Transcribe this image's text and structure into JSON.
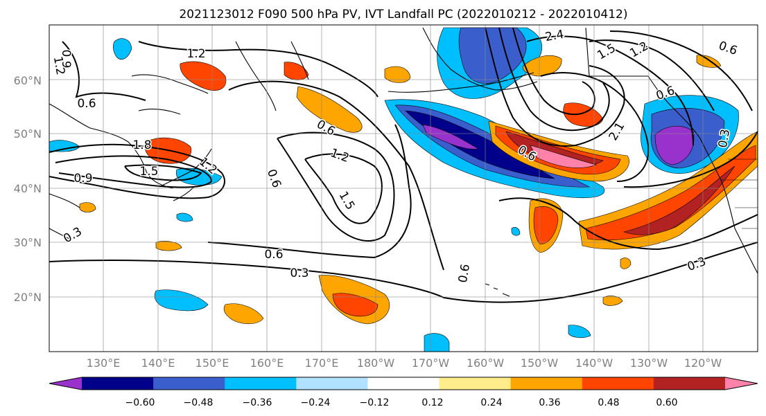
{
  "title": "2021123012 F090 500 hPa PV, IVT Landfall PC (2022010212 - 2022010412)",
  "lat_labels": [
    "60°N",
    "50°N",
    "40°N",
    "30°N",
    "20°N"
  ],
  "lon_labels": [
    "130°E",
    "140°E",
    "150°E",
    "160°E",
    "170°E",
    "180°W",
    "170°W",
    "160°W",
    "150°W",
    "140°W",
    "130°W",
    "120°W"
  ],
  "colorbar": {
    "colors": [
      "#9932cc",
      "#00008b",
      "#3a5fcd",
      "#00bfff",
      "#b0e2ff",
      "#ffffff",
      "#ffec8b",
      "#ffa500",
      "#ff4500",
      "#b22222",
      "#ff82ab"
    ],
    "tick_labels": [
      "−0.60",
      "−0.48",
      "−0.36",
      "−0.24",
      "−0.12",
      "0.12",
      "0.24",
      "0.36",
      "0.48",
      "0.60"
    ]
  },
  "contour_labels": [
    "1.2",
    "0.9",
    "1.2",
    "0.6",
    "0.6",
    "1.8",
    "1.5",
    "0.9",
    "1.2",
    "0.6",
    "0.6",
    "1.2",
    "1.5",
    "0.3",
    "0.6",
    "0.3",
    "0.6",
    "2.4",
    "1.5",
    "1.2",
    "0.6",
    "0.6",
    "2.1",
    "0.3",
    "0.3"
  ]
}
